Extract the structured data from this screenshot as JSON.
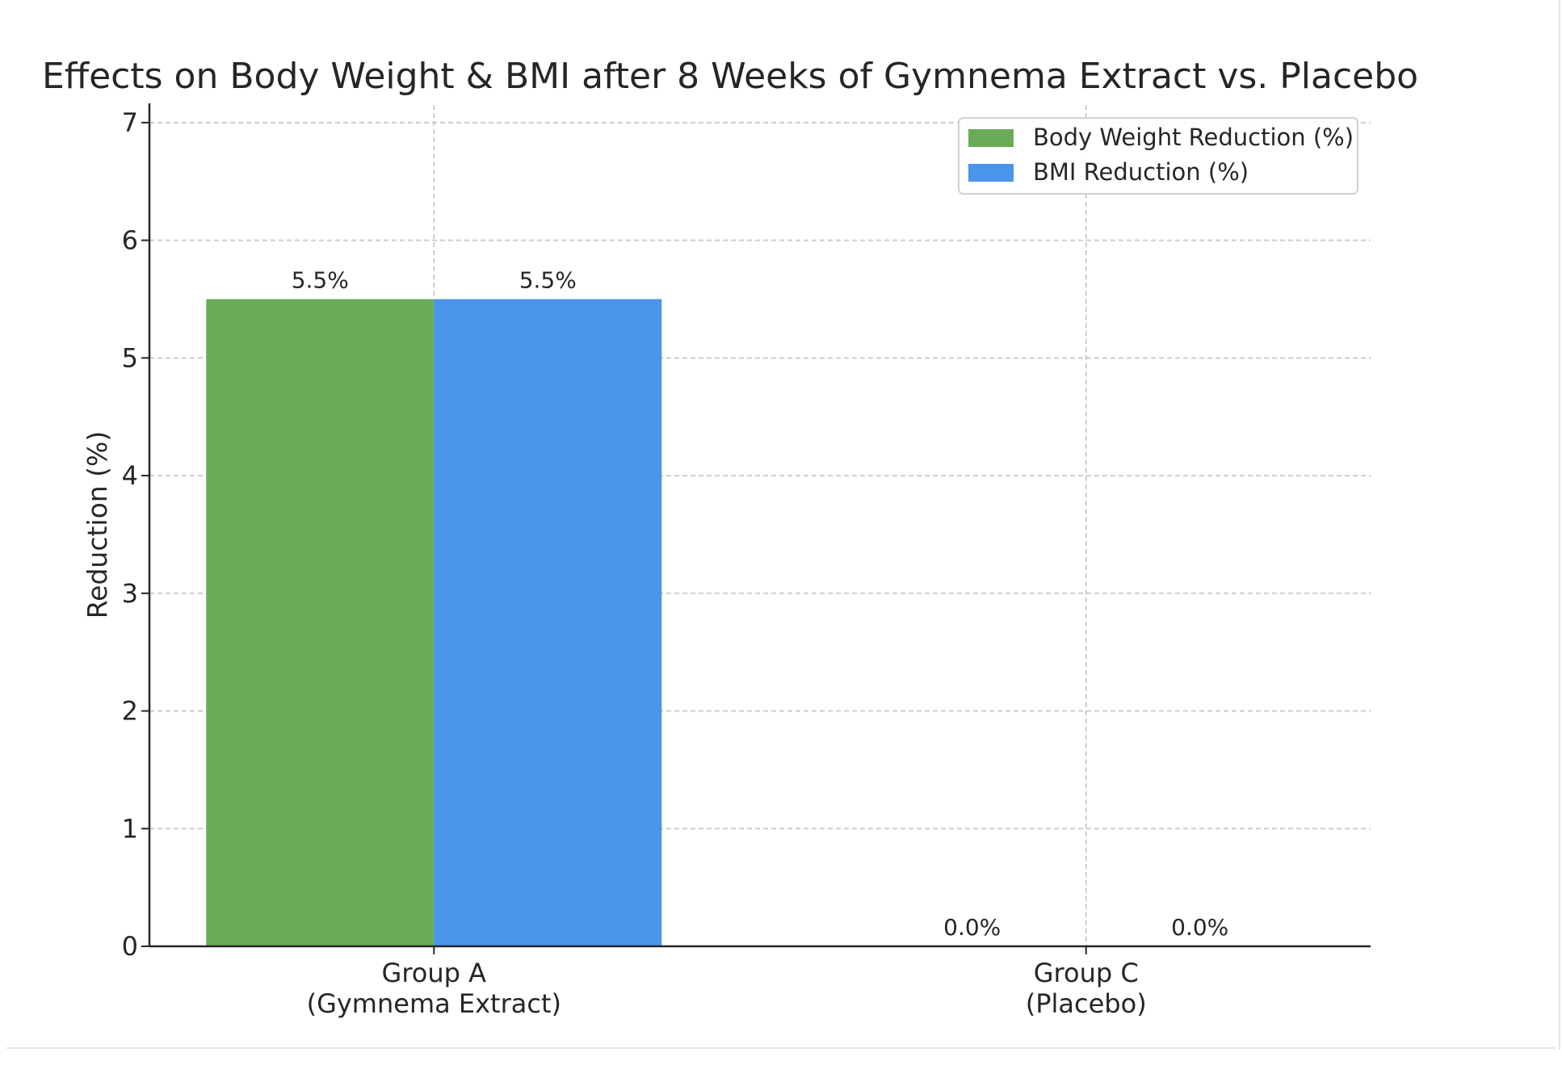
{
  "chart_data": {
    "type": "bar",
    "title": "Effects on Body Weight & BMI after 8 Weeks of Gymnema Extract vs. Placebo",
    "xlabel": "",
    "ylabel": "Reduction (%)",
    "categories": [
      "Group A\n(Gymnema Extract)",
      "Group C\n(Placebo)"
    ],
    "series": [
      {
        "name": "Body Weight Reduction (%)",
        "values": [
          5.5,
          0.0
        ],
        "labels": [
          "5.5%",
          "0.0%"
        ],
        "color": "#6aab5a"
      },
      {
        "name": "BMI Reduction (%)",
        "values": [
          5.5,
          0.0
        ],
        "labels": [
          "5.5%",
          "0.0%"
        ],
        "color": "#4a94ea"
      }
    ],
    "ylim": [
      0,
      7.15
    ],
    "yticks": [
      0,
      1,
      2,
      3,
      4,
      5,
      6,
      7
    ],
    "grid": true,
    "legend_position": "top-right"
  }
}
